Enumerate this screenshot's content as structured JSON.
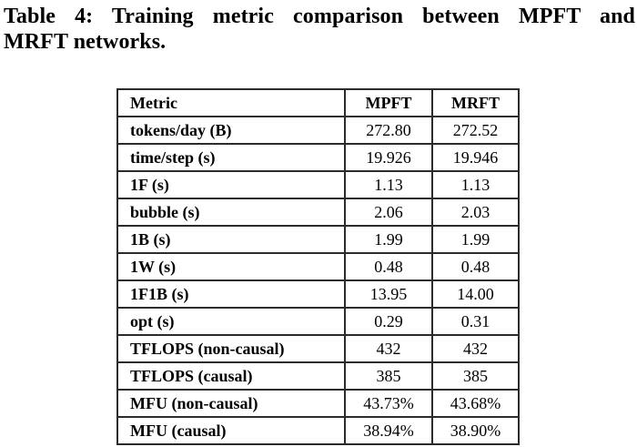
{
  "caption": {
    "line1": "Table 4: Training metric comparison between MPFT and",
    "line2": "MRFT networks."
  },
  "table": {
    "columns": [
      "Metric",
      "MPFT",
      "MRFT"
    ],
    "rows": [
      {
        "metric": "tokens/day (B)",
        "mpft": "272.80",
        "mrft": "272.52"
      },
      {
        "metric": "time/step (s)",
        "mpft": "19.926",
        "mrft": "19.946"
      },
      {
        "metric": "1F (s)",
        "mpft": "1.13",
        "mrft": "1.13"
      },
      {
        "metric": "bubble (s)",
        "mpft": "2.06",
        "mrft": "2.03"
      },
      {
        "metric": "1B (s)",
        "mpft": "1.99",
        "mrft": "1.99"
      },
      {
        "metric": "1W (s)",
        "mpft": "0.48",
        "mrft": "0.48"
      },
      {
        "metric": "1F1B (s)",
        "mpft": "13.95",
        "mrft": "14.00"
      },
      {
        "metric": "opt (s)",
        "mpft": "0.29",
        "mrft": "0.31"
      },
      {
        "metric": "TFLOPS (non-causal)",
        "mpft": "432",
        "mrft": "432"
      },
      {
        "metric": "TFLOPS (causal)",
        "mpft": "385",
        "mrft": "385"
      },
      {
        "metric": "MFU (non-causal)",
        "mpft": "43.73%",
        "mrft": "43.68%"
      },
      {
        "metric": "MFU (causal)",
        "mpft": "38.94%",
        "mrft": "38.90%"
      }
    ],
    "colors": {
      "border": "#2b2b2b",
      "text": "#000000",
      "background": "#ffffff"
    }
  }
}
